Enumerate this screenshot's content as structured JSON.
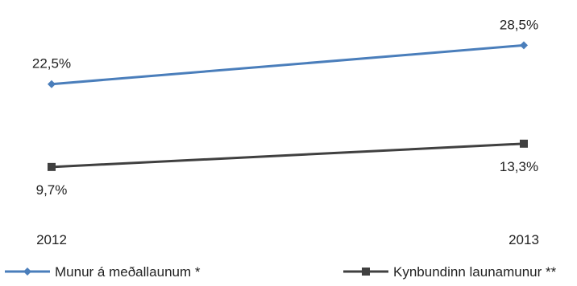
{
  "chart_data": {
    "type": "line",
    "categories": [
      "2012",
      "2013"
    ],
    "series": [
      {
        "name": "Munur á meðallaunum *",
        "values": [
          22.5,
          28.5
        ],
        "labels": [
          "22,5%",
          "28,5%"
        ],
        "color": "#4a7ebb",
        "marker": "diamond"
      },
      {
        "name": "Kynbundinn launamunur **",
        "values": [
          9.7,
          13.3
        ],
        "labels": [
          "9,7%",
          "13,3%"
        ],
        "color": "#404040",
        "marker": "square"
      }
    ],
    "ylim": [
      0,
      35
    ],
    "grid": false,
    "legend_position": "bottom"
  }
}
